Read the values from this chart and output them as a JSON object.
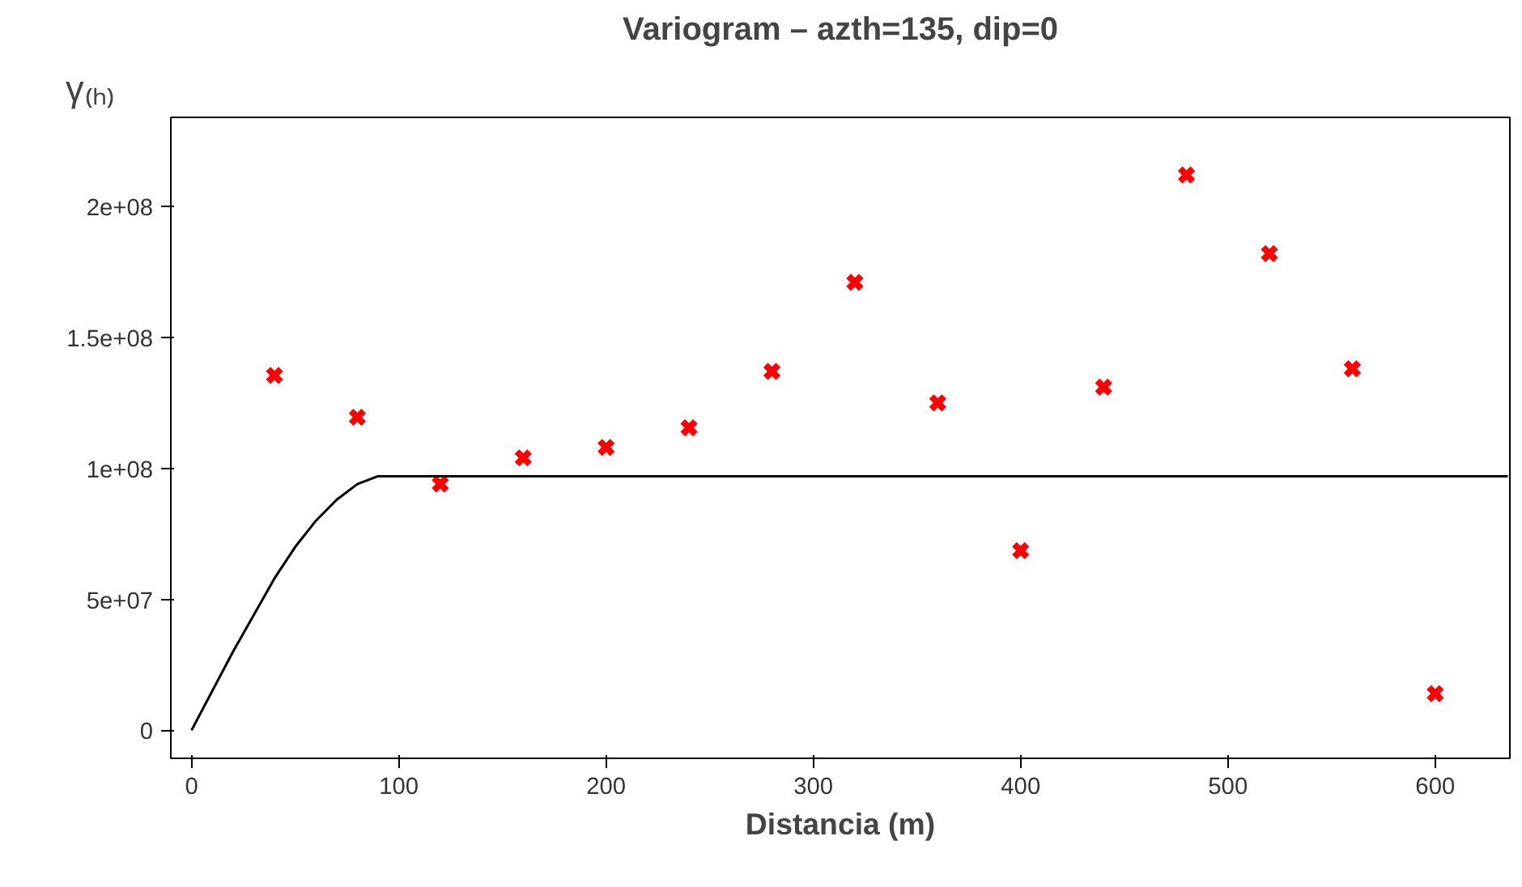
{
  "chart_data": {
    "type": "scatter",
    "title": "Variogram – azth=135, dip=0",
    "xlabel": "Distancia (m)",
    "ylabel": "γ₍ₕ₎",
    "xlim": [
      -10,
      636
    ],
    "ylim": [
      -10700000,
      234000000
    ],
    "xticks": [
      0,
      100,
      200,
      300,
      400,
      500,
      600
    ],
    "yticks": [
      0,
      {
        "value": 50000000,
        "label": "5e+07"
      },
      {
        "value": 100000000,
        "label": "1e+08"
      },
      {
        "value": 150000000,
        "label": "1.5e+08"
      },
      {
        "value": 200000000,
        "label": "2e+08"
      }
    ],
    "grid": false,
    "marker": "cross",
    "series": [
      {
        "color": "#ff0000",
        "x": [
          40,
          80,
          120,
          160,
          200,
          240,
          280,
          320,
          360,
          400,
          440,
          480,
          520,
          560,
          600
        ],
        "values": [
          135500000,
          119500000,
          94000000,
          104000000,
          108000000,
          115500000,
          137000000,
          171000000,
          125000000,
          68600000,
          131000000,
          212000000,
          182000000,
          138000000,
          14000000
        ]
      },
      {
        "type": "line",
        "color": "#000000",
        "marker": "none",
        "x": [
          0,
          10,
          20,
          30,
          40,
          50,
          60,
          70,
          80,
          90,
          95,
          635
        ],
        "values": [
          0,
          15000000,
          30000000,
          44000000,
          58000000,
          70000000,
          80000000,
          88000000,
          94000000,
          97000000,
          97000000,
          97000000
        ]
      }
    ]
  }
}
